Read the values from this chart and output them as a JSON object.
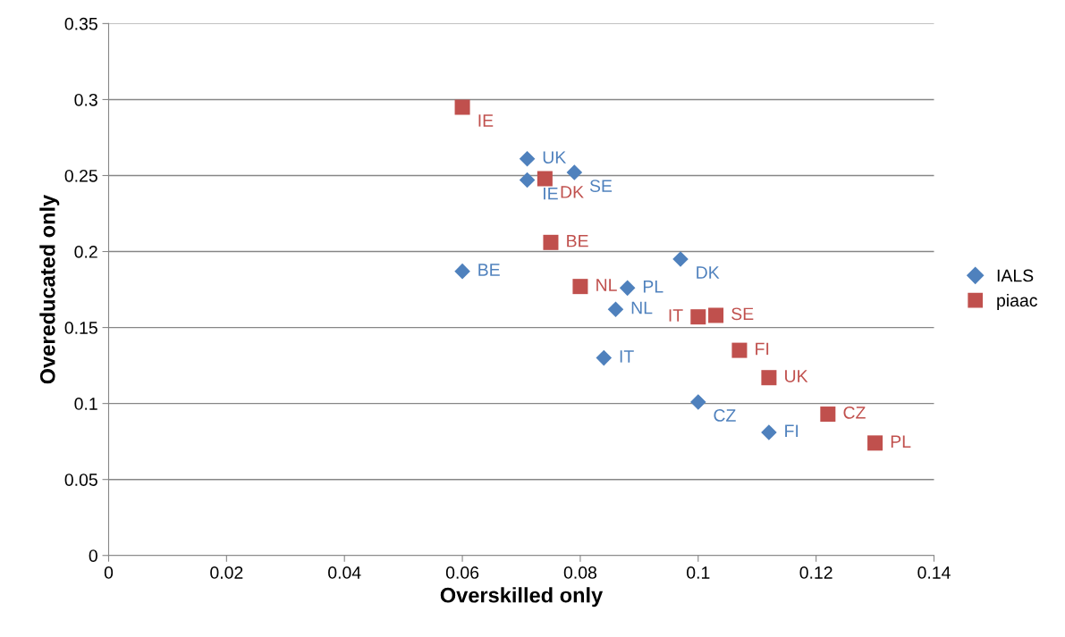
{
  "chart_data": {
    "type": "scatter",
    "xlabel": "Overskilled only",
    "ylabel": "Overeducated only",
    "xlim": [
      0,
      0.14
    ],
    "xticks": [
      0,
      0.02,
      0.04,
      0.06,
      0.08,
      0.1,
      0.12,
      0.14
    ],
    "ylim": [
      0,
      0.35
    ],
    "yticks": [
      0,
      0.05,
      0.1,
      0.15,
      0.2,
      0.25,
      0.3,
      0.35
    ],
    "grid": "y",
    "legend": "right",
    "series": [
      {
        "name": "IALS",
        "color": "#4f81bd",
        "marker": "diamond",
        "x": [
          0.071,
          0.071,
          0.079,
          0.06,
          0.097,
          0.088,
          0.086,
          0.084,
          0.1,
          0.112
        ],
        "values": [
          0.261,
          0.247,
          0.252,
          0.187,
          0.195,
          0.176,
          0.162,
          0.13,
          0.101,
          0.081
        ],
        "value_labels": [
          "UK",
          "IE",
          "SE",
          "BE",
          "DK",
          "PL",
          "NL",
          "IT",
          "CZ",
          "FI"
        ]
      },
      {
        "name": "piaac",
        "color": "#c0504d",
        "marker": "square",
        "x": [
          0.06,
          0.074,
          0.075,
          0.08,
          0.1,
          0.103,
          0.107,
          0.112,
          0.122,
          0.13
        ],
        "values": [
          0.295,
          0.248,
          0.206,
          0.177,
          0.157,
          0.158,
          0.135,
          0.117,
          0.093,
          0.074
        ],
        "value_labels": [
          "IE",
          "DK",
          "BE",
          "NL",
          "IT",
          "SE",
          "FI",
          "UK",
          "CZ",
          "PL"
        ]
      }
    ]
  }
}
